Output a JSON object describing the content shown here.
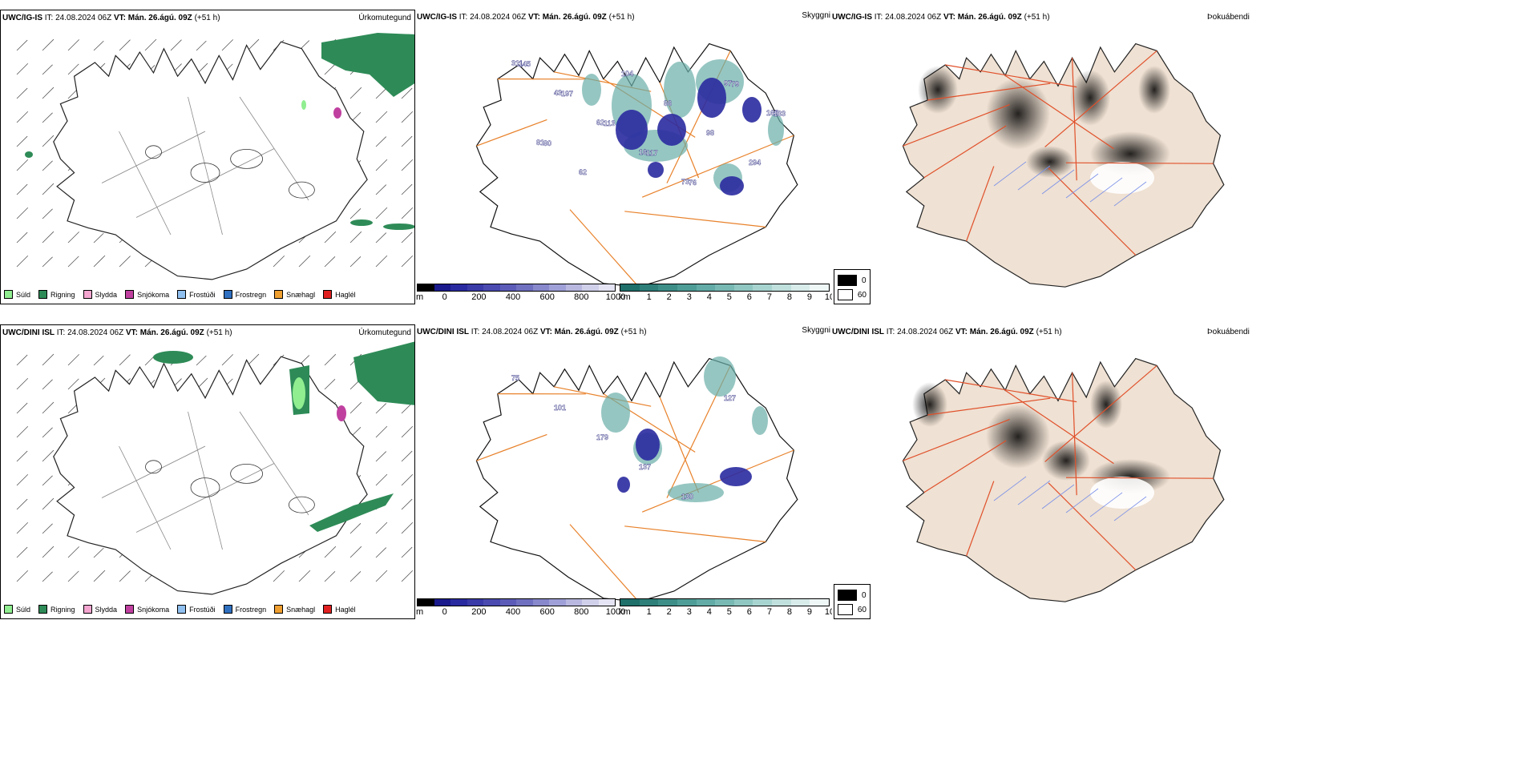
{
  "rows": [
    {
      "model": "UWC/IG-IS",
      "it_label": "IT:",
      "it_value": "24.08.2024 06Z",
      "vt_label": "VT:",
      "vt_value": "Mán. 26.ágú. 09Z",
      "lead": "(+51 h)",
      "precip_title": "Úrkomutegund",
      "cloud_title": "Skyggni",
      "fog_title": "Þokuábendi",
      "numbers": [
        "311",
        "43",
        "62",
        "16",
        "73",
        "97",
        "165",
        "81",
        "62",
        "104",
        "86",
        "98",
        "294",
        "145",
        "197",
        "113",
        "117",
        "76",
        "79",
        "133",
        "80"
      ]
    },
    {
      "model": "UWC/DINI ISL",
      "it_label": "IT:",
      "it_value": "24.08.2024 06Z",
      "vt_label": "VT:",
      "vt_value": "Mán. 26.ágú. 09Z",
      "lead": "(+51 h)",
      "precip_title": "Úrkomutegund",
      "cloud_title": "Skyggni",
      "fog_title": "Þokuábendi",
      "numbers": [
        "75",
        "101",
        "179",
        "137",
        "130",
        "127"
      ]
    }
  ],
  "precip_legend": [
    {
      "label": "Súld",
      "color": "#90ee90"
    },
    {
      "label": "Rigning",
      "color": "#2e8b57"
    },
    {
      "label": "Slydda",
      "color": "#f4a6d0"
    },
    {
      "label": "Snjókoma",
      "color": "#c040a0"
    },
    {
      "label": "Frostúði",
      "color": "#90c0f0"
    },
    {
      "label": "Frostregn",
      "color": "#3070c0"
    },
    {
      "label": "Snæhagl",
      "color": "#f0a030"
    },
    {
      "label": "Haglél",
      "color": "#e02020"
    }
  ],
  "ceiling_bar": {
    "unit": "m",
    "ticks": [
      "0",
      "200",
      "400",
      "600",
      "800",
      "1000"
    ],
    "colors": [
      "#000000",
      "#1a1a8c",
      "#2a2aa0",
      "#3a3aa8",
      "#4a4ab0",
      "#5c5cb8",
      "#7070c0",
      "#8888cc",
      "#a0a0d8",
      "#b8b8e0",
      "#d0d0ea",
      "#e4e4f4"
    ]
  },
  "visibility_bar": {
    "unit": "km",
    "ticks": [
      "1",
      "2",
      "3",
      "4",
      "5",
      "6",
      "7",
      "8",
      "9",
      "10"
    ],
    "colors": [
      "#1f6f6a",
      "#2e7f79",
      "#3e8e88",
      "#4f9d97",
      "#62aba6",
      "#78b9b4",
      "#90c7c2",
      "#a8d4d0",
      "#c0e0dd",
      "#d8ecea",
      "#eef7f6"
    ]
  },
  "fog_legend": {
    "items": [
      {
        "label": "0",
        "color": "#000000"
      },
      {
        "label": "60",
        "color": "#ffffff"
      }
    ]
  }
}
